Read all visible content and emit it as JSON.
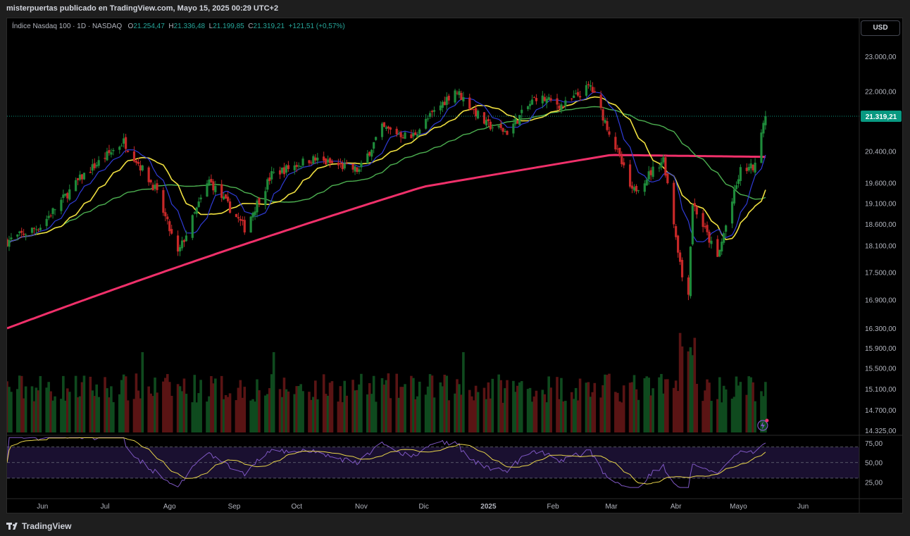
{
  "header": {
    "publish_line": "misterpuertas publicado en TradingView.com, Mayo 15, 2025 00:29 UTC+2"
  },
  "legend": {
    "symbol": "Índice Nasdaq 100 · 1D · NASDAQ",
    "open_label": "O",
    "open": "21.254,47",
    "high_label": "H",
    "high": "21.336,48",
    "low_label": "L",
    "low": "21.199,85",
    "close_label": "C",
    "close": "21.319,21",
    "change": "+121,51 (+0,57%)"
  },
  "currency_button": "USD",
  "last_price_label": "21.319,21",
  "footer": {
    "logo_text": "TradingView"
  },
  "colors": {
    "up": "#1e8a3a",
    "down": "#c62828",
    "ma_blue": "#2f3bd6",
    "ma_yellow": "#f0e040",
    "ma_green": "#4caf50",
    "ma_red": "#f0306a",
    "rsi_line": "#7e57c2",
    "rsi_ma": "#e8d44a",
    "last_price_bg": "#089981"
  },
  "chart_data": {
    "type": "candlestick",
    "x_axis": {
      "ticks": [
        {
          "label": "Jun",
          "date": "2024-06-01"
        },
        {
          "label": "Jul",
          "date": "2024-07-01"
        },
        {
          "label": "Ago",
          "date": "2024-08-01"
        },
        {
          "label": "Sep",
          "date": "2024-09-01"
        },
        {
          "label": "Oct",
          "date": "2024-10-01"
        },
        {
          "label": "Nov",
          "date": "2024-11-01"
        },
        {
          "label": "Dic",
          "date": "2024-12-01"
        },
        {
          "label": "2025",
          "date": "2025-01-01"
        },
        {
          "label": "Feb",
          "date": "2025-02-01"
        },
        {
          "label": "Mar",
          "date": "2025-03-01"
        },
        {
          "label": "Abr",
          "date": "2025-04-01"
        },
        {
          "label": "Mayo",
          "date": "2025-05-01"
        },
        {
          "label": "Jun",
          "date": "2025-06-01"
        }
      ]
    },
    "y_axis": {
      "scale": "log",
      "ticks": [
        {
          "label": "23.000,00",
          "value": 23000
        },
        {
          "label": "22.000,00",
          "value": 22000
        },
        {
          "label": "20.400,00",
          "value": 20400
        },
        {
          "label": "19.600,00",
          "value": 19600
        },
        {
          "label": "19.100,00",
          "value": 19100
        },
        {
          "label": "18.600,00",
          "value": 18600
        },
        {
          "label": "18.100,00",
          "value": 18100
        },
        {
          "label": "17.500,00",
          "value": 17500
        },
        {
          "label": "16.900,00",
          "value": 16900
        },
        {
          "label": "16.300,00",
          "value": 16300
        },
        {
          "label": "15.900,00",
          "value": 15900
        },
        {
          "label": "15.500,00",
          "value": 15500
        },
        {
          "label": "15.100,00",
          "value": 15100
        },
        {
          "label": "14.700,00",
          "value": 14700
        },
        {
          "label": "14.325,00",
          "value": 14325
        }
      ],
      "last_price": 21319.21
    },
    "price_anchors": [
      {
        "date": "2024-05-15",
        "close": 18200
      },
      {
        "date": "2024-05-31",
        "close": 18550
      },
      {
        "date": "2024-06-20",
        "close": 19750
      },
      {
        "date": "2024-07-10",
        "close": 20650
      },
      {
        "date": "2024-07-25",
        "close": 19450
      },
      {
        "date": "2024-08-05",
        "close": 17900
      },
      {
        "date": "2024-08-20",
        "close": 19650
      },
      {
        "date": "2024-09-06",
        "close": 18500
      },
      {
        "date": "2024-09-19",
        "close": 19800
      },
      {
        "date": "2024-10-08",
        "close": 20200
      },
      {
        "date": "2024-10-31",
        "close": 19900
      },
      {
        "date": "2024-11-11",
        "close": 21000
      },
      {
        "date": "2024-11-25",
        "close": 20750
      },
      {
        "date": "2024-12-16",
        "close": 22050
      },
      {
        "date": "2024-12-31",
        "close": 21100
      },
      {
        "date": "2025-01-10",
        "close": 20900
      },
      {
        "date": "2025-01-24",
        "close": 21850
      },
      {
        "date": "2025-02-06",
        "close": 21600
      },
      {
        "date": "2025-02-19",
        "close": 22150
      },
      {
        "date": "2025-03-03",
        "close": 20500
      },
      {
        "date": "2025-03-11",
        "close": 19350
      },
      {
        "date": "2025-03-26",
        "close": 20200
      },
      {
        "date": "2025-04-04",
        "close": 17400
      },
      {
        "date": "2025-04-07",
        "close": 17100
      },
      {
        "date": "2025-04-09",
        "close": 19100
      },
      {
        "date": "2025-04-21",
        "close": 17800
      },
      {
        "date": "2025-05-02",
        "close": 19900
      },
      {
        "date": "2025-05-09",
        "close": 20000
      },
      {
        "date": "2025-05-12",
        "close": 21000
      },
      {
        "date": "2025-05-14",
        "close": 21319
      }
    ],
    "moving_averages": [
      {
        "color": "blue",
        "period": 10
      },
      {
        "color": "yellow",
        "period": 20
      },
      {
        "color": "green",
        "period": 50
      },
      {
        "color": "red",
        "period": 200
      }
    ],
    "ma200_anchors": [
      {
        "date": "2024-05-15",
        "value": 16300
      },
      {
        "date": "2024-09-01",
        "value": 18050
      },
      {
        "date": "2024-12-01",
        "value": 19500
      },
      {
        "date": "2025-03-01",
        "value": 20300
      },
      {
        "date": "2025-05-14",
        "value": 20250
      }
    ],
    "volume": {
      "shown": true,
      "axis": "none"
    },
    "rsi": {
      "period": 14,
      "ticks": [
        75,
        50,
        25
      ],
      "tick_labels": [
        "75,00",
        "50,00",
        "25,00"
      ],
      "band": [
        30,
        70
      ],
      "last_value": 70
    }
  }
}
